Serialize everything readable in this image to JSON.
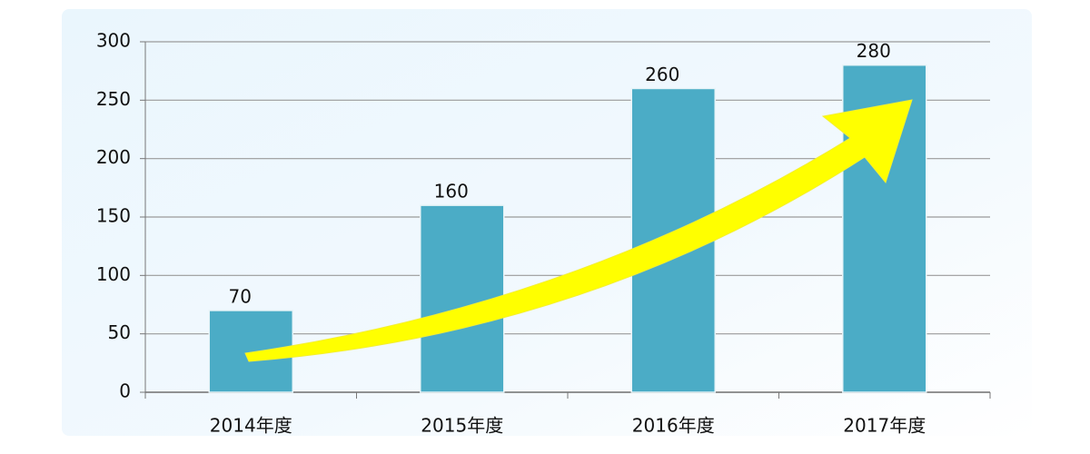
{
  "chart_data": {
    "type": "bar",
    "categories": [
      "2014年度",
      "2015年度",
      "2016年度",
      "2017年度"
    ],
    "values": [
      70,
      160,
      260,
      280
    ],
    "color": "#4bacc6",
    "ylim": [
      0,
      300
    ],
    "yticks": [
      0,
      50,
      100,
      150,
      200,
      250,
      300
    ],
    "grid": true
  }
}
